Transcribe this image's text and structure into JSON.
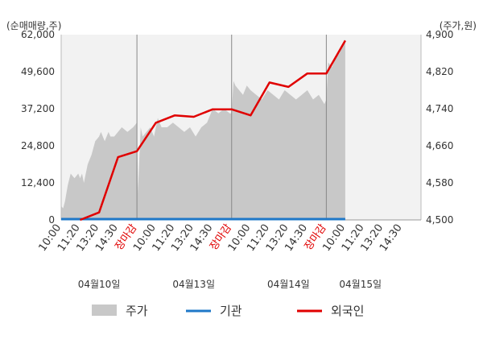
{
  "chart_data": {
    "type": "line",
    "y_left_unit": "(순매매량,주)",
    "y_right_unit": "(주가,원)",
    "y_left_ticks": [
      "62,000",
      "49,600",
      "37,200",
      "24,800",
      "12,400",
      "0"
    ],
    "y_right_ticks": [
      "4,900",
      "4,820",
      "4,740",
      "4,660",
      "4,580",
      "4,500"
    ],
    "ylim_left": [
      0,
      62000
    ],
    "ylim_right": [
      4500,
      4900
    ],
    "x_ticks": [
      {
        "label": "10:00",
        "color": "#333333"
      },
      {
        "label": "11:20",
        "color": "#333333"
      },
      {
        "label": "13:20",
        "color": "#333333"
      },
      {
        "label": "14:30",
        "color": "#333333"
      },
      {
        "label": "장마감",
        "color": "#e00000"
      },
      {
        "label": "10:00",
        "color": "#333333"
      },
      {
        "label": "11:20",
        "color": "#333333"
      },
      {
        "label": "13:20",
        "color": "#333333"
      },
      {
        "label": "14:30",
        "color": "#333333"
      },
      {
        "label": "장마감",
        "color": "#e00000"
      },
      {
        "label": "10:00",
        "color": "#333333"
      },
      {
        "label": "11:20",
        "color": "#333333"
      },
      {
        "label": "13:20",
        "color": "#333333"
      },
      {
        "label": "14:30",
        "color": "#333333"
      },
      {
        "label": "장마감",
        "color": "#e00000"
      },
      {
        "label": "10:00",
        "color": "#333333"
      },
      {
        "label": "11:20",
        "color": "#333333"
      },
      {
        "label": "13:20",
        "color": "#333333"
      },
      {
        "label": "14:30",
        "color": "#333333"
      }
    ],
    "day_dividers": [
      4,
      9,
      14
    ],
    "date_labels": [
      {
        "label": "04월10일",
        "tick": 2
      },
      {
        "label": "04월13일",
        "tick": 7
      },
      {
        "label": "04월14일",
        "tick": 12
      },
      {
        "label": "04월15일",
        "tick": 15.8
      }
    ],
    "x_count": 19,
    "series": [
      {
        "name": "주가",
        "axis": "right",
        "type": "area",
        "color": "#c8c8c8",
        "x": [
          0,
          0.1,
          0.2,
          0.35,
          0.5,
          0.7,
          0.9,
          1.0,
          1.1,
          1.2,
          1.4,
          1.6,
          1.8,
          2.0,
          2.1,
          2.3,
          2.5,
          2.6,
          2.8,
          3.0,
          3.2,
          3.5,
          3.8,
          4.0,
          4.05,
          4.2,
          4.3,
          4.5,
          4.7,
          4.9,
          5.1,
          5.3,
          5.6,
          5.9,
          6.2,
          6.5,
          6.8,
          7.1,
          7.4,
          7.7,
          8.0,
          8.3,
          8.6,
          8.9,
          9.0,
          9.1,
          9.2,
          9.4,
          9.6,
          9.8,
          10.0,
          10.3,
          10.6,
          10.9,
          11.2,
          11.5,
          11.8,
          12.1,
          12.4,
          12.7,
          13.0,
          13.3,
          13.6,
          13.9,
          14.0,
          14.1,
          14.3,
          14.5,
          14.7,
          14.9,
          15.0
        ],
        "values": [
          4530,
          4525,
          4540,
          4575,
          4600,
          4590,
          4600,
          4590,
          4600,
          4580,
          4620,
          4640,
          4670,
          4680,
          4690,
          4670,
          4690,
          4680,
          4680,
          4690,
          4700,
          4690,
          4700,
          4710,
          4560,
          4700,
          4680,
          4690,
          4700,
          4680,
          4720,
          4700,
          4700,
          4710,
          4700,
          4690,
          4700,
          4680,
          4700,
          4710,
          4740,
          4730,
          4740,
          4730,
          4730,
          4800,
          4790,
          4780,
          4770,
          4790,
          4780,
          4770,
          4760,
          4780,
          4770,
          4760,
          4780,
          4770,
          4760,
          4770,
          4780,
          4760,
          4770,
          4750,
          4760,
          4840,
          4830,
          4850,
          4860,
          4880,
          4890
        ]
      },
      {
        "name": "기관",
        "axis": "left",
        "type": "line",
        "color": "#1f78c8",
        "x": [
          0,
          15
        ],
        "values": [
          0,
          0
        ]
      },
      {
        "name": "외국인",
        "axis": "left",
        "type": "line",
        "color": "#e00000",
        "x": [
          1,
          2,
          3,
          4,
          5,
          6,
          7,
          8,
          9,
          10,
          11,
          12,
          13,
          14,
          15
        ],
        "values": [
          0,
          2500,
          21000,
          23000,
          32500,
          35000,
          34500,
          37000,
          37000,
          35000,
          46000,
          44500,
          49000,
          49000,
          60000
        ]
      }
    ],
    "legend": [
      {
        "name": "주가",
        "kind": "box",
        "color": "#c8c8c8"
      },
      {
        "name": "기관",
        "kind": "line",
        "color": "#1f78c8"
      },
      {
        "name": "외국인",
        "kind": "line",
        "color": "#e00000"
      }
    ],
    "legend_position": "bottom",
    "grid": false
  }
}
